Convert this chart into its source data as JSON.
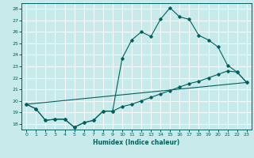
{
  "title": "",
  "xlabel": "Humidex (Indice chaleur)",
  "bg_color": "#c8eaea",
  "line_color": "#006060",
  "xlim": [
    -0.5,
    23.5
  ],
  "ylim": [
    17.5,
    28.5
  ],
  "xticks": [
    0,
    1,
    2,
    3,
    4,
    5,
    6,
    7,
    8,
    9,
    10,
    11,
    12,
    13,
    14,
    15,
    16,
    17,
    18,
    19,
    20,
    21,
    22,
    23
  ],
  "yticks": [
    18,
    19,
    20,
    21,
    22,
    23,
    24,
    25,
    26,
    27,
    28
  ],
  "line1_x": [
    0,
    1,
    2,
    3,
    4,
    5,
    6,
    7,
    8,
    9,
    10,
    11,
    12,
    13,
    14,
    15,
    16,
    17,
    18,
    19,
    20,
    21,
    22,
    23
  ],
  "line1_y": [
    19.7,
    19.3,
    18.3,
    18.4,
    18.4,
    17.7,
    18.1,
    18.3,
    19.1,
    19.1,
    23.7,
    25.3,
    26.0,
    25.6,
    27.1,
    28.1,
    27.3,
    27.1,
    25.7,
    25.3,
    24.7,
    23.1,
    22.5,
    21.6
  ],
  "line2_x": [
    0,
    1,
    2,
    3,
    4,
    5,
    6,
    7,
    8,
    9,
    10,
    11,
    12,
    13,
    14,
    15,
    16,
    17,
    18,
    19,
    20,
    21,
    22,
    23
  ],
  "line2_y": [
    19.7,
    19.3,
    18.3,
    18.4,
    18.4,
    17.7,
    18.1,
    18.3,
    19.1,
    19.1,
    19.5,
    19.7,
    20.0,
    20.3,
    20.6,
    20.9,
    21.2,
    21.5,
    21.7,
    22.0,
    22.3,
    22.6,
    22.5,
    21.6
  ],
  "line3_x": [
    0,
    23
  ],
  "line3_y": [
    19.7,
    21.6
  ]
}
